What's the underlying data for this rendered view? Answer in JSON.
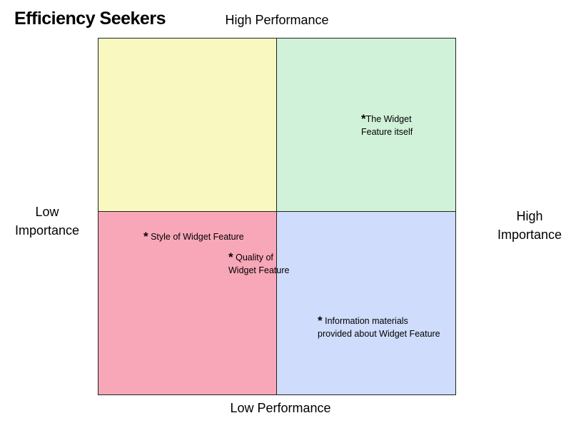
{
  "title": "Efficiency Seekers",
  "axes": {
    "top": "High Performance",
    "bottom": "Low Performance",
    "left": [
      "Low",
      "Importance"
    ],
    "right": [
      "High",
      "Importance"
    ]
  },
  "colors": {
    "top_left": "#f8f8c0",
    "top_right": "#d0f2d8",
    "bottom_left": "#f8a7b8",
    "bottom_right": "#cfdcfb"
  },
  "items": [
    {
      "star": "*",
      "lines": [
        "The Widget",
        "Feature itself"
      ]
    },
    {
      "star": "*",
      "lines": [
        " Style of Widget Feature"
      ]
    },
    {
      "star": "*",
      "lines": [
        " Quality of",
        "Widget Feature"
      ]
    },
    {
      "star": "*",
      "lines": [
        " Information materials",
        "provided about Widget Feature"
      ]
    }
  ]
}
